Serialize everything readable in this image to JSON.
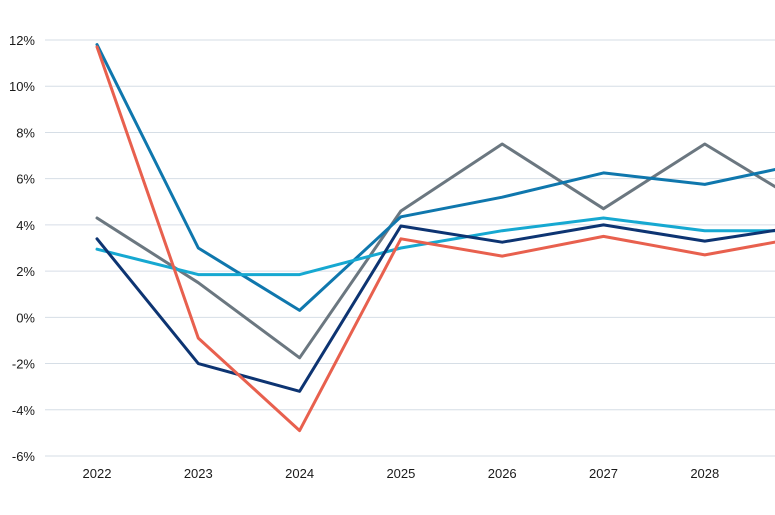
{
  "chart_data": {
    "type": "line",
    "title": "",
    "xlabel": "",
    "ylabel": "",
    "categories": [
      "2022",
      "2023",
      "2024",
      "2025",
      "2026",
      "2027",
      "2028"
    ],
    "x": [
      2022,
      2023,
      2024,
      2025,
      2026,
      2027,
      2028,
      2028.75
    ],
    "ylim": [
      -6,
      12
    ],
    "yticks": [
      12,
      10,
      8,
      6,
      4,
      2,
      0,
      -2,
      -4,
      -6
    ],
    "ytick_labels": [
      "12%",
      "10%",
      "8%",
      "6%",
      "4%",
      "2%",
      "0%",
      "-2%",
      "-4%",
      "-6%"
    ],
    "grid": true,
    "series": [
      {
        "name": "series-gray",
        "color": "#6b7780",
        "values": [
          4.3,
          1.5,
          -1.75,
          4.6,
          7.5,
          4.7,
          7.5,
          5.5
        ]
      },
      {
        "name": "series-blue",
        "color": "#0f77ad",
        "values": [
          11.8,
          3.0,
          0.3,
          4.35,
          5.2,
          6.25,
          5.75,
          6.45
        ]
      },
      {
        "name": "series-light-blue",
        "color": "#16a8d1",
        "values": [
          2.95,
          1.85,
          1.85,
          3.0,
          3.75,
          4.3,
          3.75,
          3.75
        ]
      },
      {
        "name": "series-navy",
        "color": "#0d3472",
        "values": [
          3.4,
          -2.0,
          -3.2,
          3.95,
          3.25,
          4.0,
          3.3,
          3.8
        ]
      },
      {
        "name": "series-red",
        "color": "#e8604e",
        "values": [
          11.7,
          -0.9,
          -4.9,
          3.4,
          2.65,
          3.5,
          2.7,
          3.3
        ]
      }
    ]
  }
}
